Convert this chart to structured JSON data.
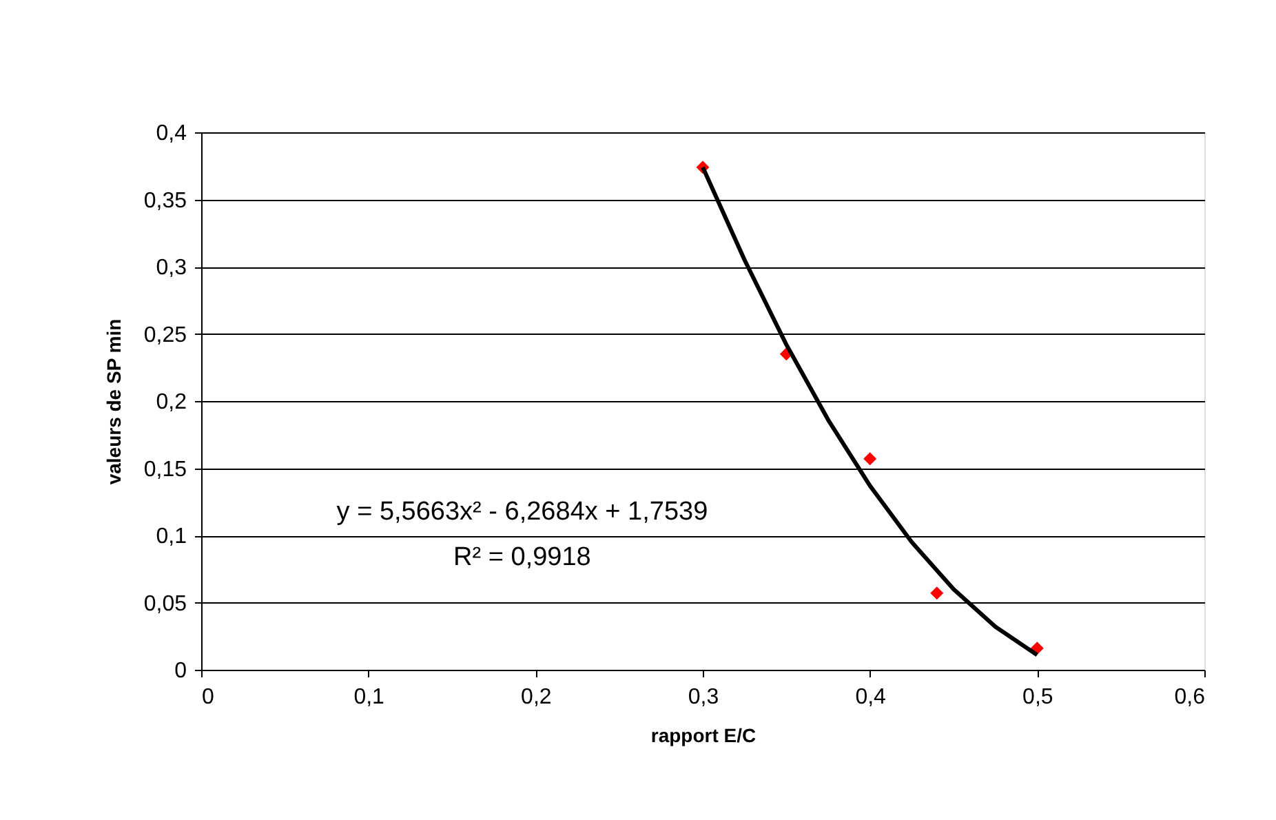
{
  "chart_data": {
    "type": "scatter",
    "xlabel": "rapport E/C",
    "ylabel": "valeurs de SP min",
    "series": [
      {
        "color": "#ff0000",
        "marker": "diamond",
        "x": [
          0.3,
          0.35,
          0.4,
          0.44,
          0.5
        ],
        "values": [
          0.374,
          0.235,
          0.157,
          0.057,
          0.016
        ]
      },
      {
        "type": "line",
        "color": "#000000",
        "marker": "none",
        "line_style": "solid",
        "x": [
          0.3,
          0.325,
          0.35,
          0.375,
          0.4,
          0.425,
          0.45,
          0.475,
          0.5
        ],
        "values": [
          0.374,
          0.305,
          0.242,
          0.186,
          0.137,
          0.095,
          0.06,
          0.032,
          0.011
        ]
      }
    ],
    "xlim": [
      0,
      0.6
    ],
    "xticks": [
      0,
      {
        "value": 0.1,
        "label": "0,1"
      },
      {
        "value": 0.2,
        "label": "0,2"
      },
      {
        "value": 0.3,
        "label": "0,3"
      },
      {
        "value": 0.4,
        "label": "0,4"
      },
      {
        "value": 0.5,
        "label": "0,5"
      },
      {
        "value": 0.6,
        "label": "0,6"
      }
    ],
    "ylim": [
      0,
      0.4
    ],
    "yticks": [
      0,
      {
        "value": 0.05,
        "label": "0,05"
      },
      {
        "value": 0.1,
        "label": "0,1"
      },
      {
        "value": 0.15,
        "label": "0,15"
      },
      {
        "value": 0.2,
        "label": "0,2"
      },
      {
        "value": 0.25,
        "label": "0,25"
      },
      {
        "value": 0.3,
        "label": "0,3"
      },
      {
        "value": 0.35,
        "label": "0,35"
      },
      {
        "value": 0.4,
        "label": "0,4"
      }
    ],
    "grid": "y",
    "annotations": [
      "y = 5,5663x² - 6,2684x + 1,7539",
      "R² = 0,9918"
    ]
  }
}
